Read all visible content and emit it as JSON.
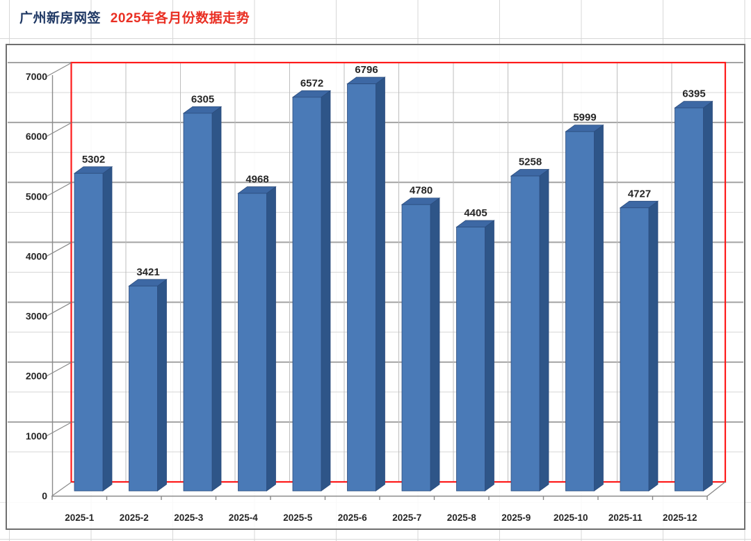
{
  "header": {
    "title_primary": "广州新房网签",
    "title_secondary": "2025年各月份数据走势",
    "title_primary_color": "#1f3864",
    "title_secondary_color": "#e92f23"
  },
  "chart_data": {
    "type": "bar",
    "style": "3d-column",
    "title": "广州新房网签 2025年各月份数据走势",
    "categories": [
      "2025-1",
      "2025-2",
      "2025-3",
      "2025-4",
      "2025-5",
      "2025-6",
      "2025-7",
      "2025-8",
      "2025-9",
      "2025-10",
      "2025-11",
      "2025-12"
    ],
    "values": [
      5302,
      3421,
      6305,
      4968,
      6572,
      6796,
      4780,
      4405,
      5258,
      5999,
      4727,
      6395
    ],
    "xlabel": "",
    "ylabel": "",
    "ylim": [
      0,
      7000
    ],
    "ytick_step": 1000,
    "minor_grid_step": 500,
    "ytick_labels": [
      "0",
      "1000",
      "2000",
      "3000",
      "4000",
      "5000",
      "6000",
      "7000"
    ],
    "grid": true,
    "legend": false,
    "data_labels": true,
    "colors": {
      "bar_front": "#4a7ab7",
      "bar_top": "#3d68a4",
      "bar_side": "#2e5588",
      "bar_outline": "#2c4d7e",
      "plot_border": "#fe1a1a",
      "major_grid": "#a3a3a3",
      "minor_grid": "#d6d6d6",
      "axis": "#8a8a8a",
      "label": "#262626"
    }
  }
}
